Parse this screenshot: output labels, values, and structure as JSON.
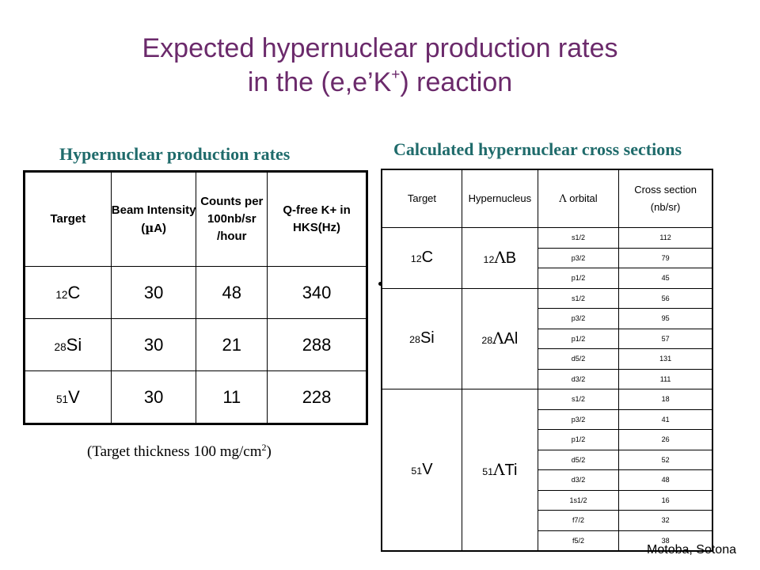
{
  "title": {
    "line1": "Expected hypernuclear production rates",
    "line2_pre": "in the (e,e’K",
    "line2_sup": "+",
    "line2_post": ") reaction"
  },
  "left": {
    "heading": "Hypernuclear production rates",
    "headers": {
      "target": "Target",
      "beam_line1": "Beam Intensity",
      "beam_line2_pre": "(",
      "beam_mu": "µ",
      "beam_line2_post": "A)",
      "counts_line1": "Counts per",
      "counts_line2": "100nb/sr /hour",
      "qfree": "Q-free K+ in HKS(Hz)"
    },
    "rows": [
      {
        "mass": "12",
        "el": "C",
        "beam": "30",
        "counts": "48",
        "qfree": "340"
      },
      {
        "mass": "28",
        "el": "Si",
        "beam": "30",
        "counts": "21",
        "qfree": "288"
      },
      {
        "mass": "51",
        "el": "V",
        "beam": "30",
        "counts": "11",
        "qfree": "228"
      }
    ],
    "note_pre": "(Target thickness 100 mg/cm",
    "note_sup": "2",
    "note_post": ")"
  },
  "right": {
    "heading": "Calculated hypernuclear cross sections",
    "headers": {
      "target": "Target",
      "hyper": "Hypernucleus",
      "orbital_lambda": "Λ",
      "orbital": " orbital",
      "cs_line1": "Cross section",
      "cs_line2": "(nb/sr)"
    },
    "groups": [
      {
        "mass": "12",
        "el": "C",
        "hmass": "12",
        "lambda": "Λ",
        "hel": "B",
        "states": [
          [
            "s1/2",
            "112"
          ],
          [
            "p3/2",
            "79"
          ],
          [
            "p1/2",
            "45"
          ]
        ]
      },
      {
        "mass": "28",
        "el": "Si",
        "hmass": "28",
        "lambda": "Λ",
        "hel": "Al",
        "states": [
          [
            "s1/2",
            "56"
          ],
          [
            "p3/2",
            "95"
          ],
          [
            "p1/2",
            "57"
          ],
          [
            "d5/2",
            "131"
          ],
          [
            "d3/2",
            "111"
          ]
        ]
      },
      {
        "mass": "51",
        "el": "V",
        "hmass": "51",
        "lambda": "Λ",
        "hel": "Ti",
        "states": [
          [
            "s1/2",
            "18"
          ],
          [
            "p3/2",
            "41"
          ],
          [
            "p1/2",
            "26"
          ],
          [
            "d5/2",
            "52"
          ],
          [
            "d3/2",
            "48"
          ],
          [
            "1s1/2",
            "16"
          ],
          [
            "f7/2",
            "32"
          ],
          [
            "f5/2",
            "38"
          ]
        ]
      }
    ]
  },
  "credit": "Motoba, Sotona"
}
